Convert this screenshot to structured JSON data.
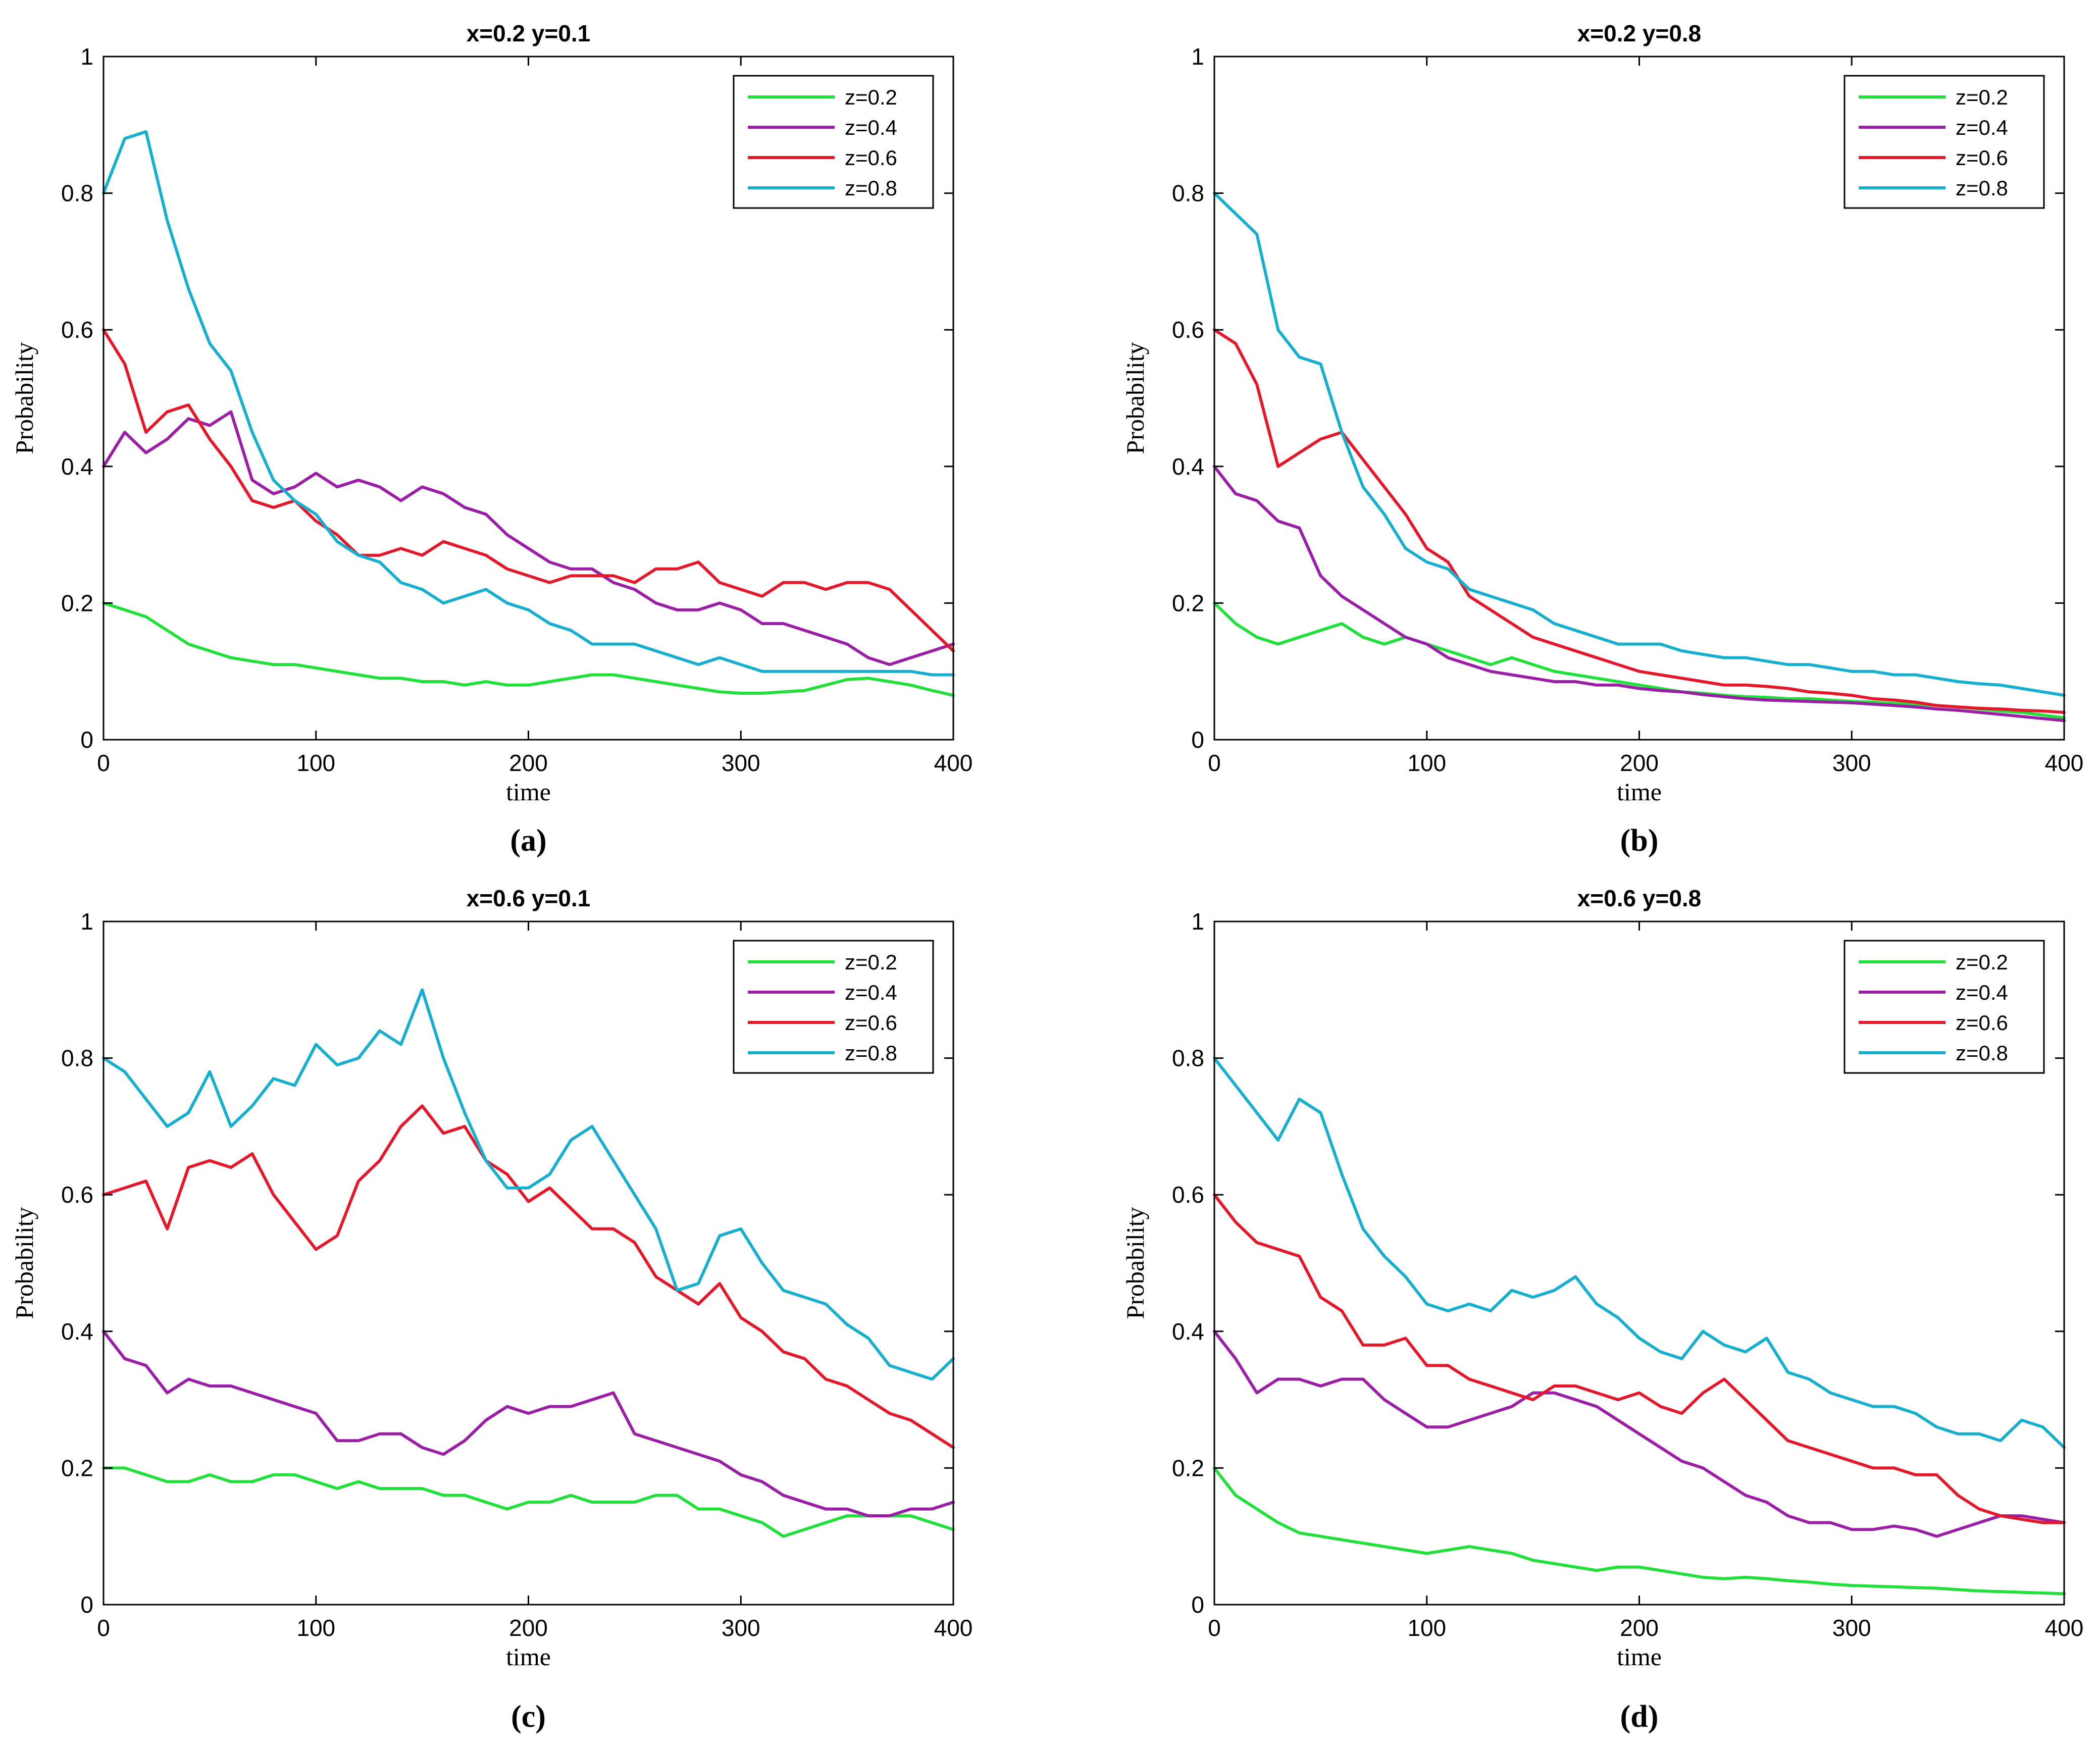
{
  "figure": {
    "colors": {
      "z=0.2": "#22e03a",
      "z=0.4": "#9b1fa6",
      "z=0.6": "#e3192b",
      "z=0.8": "#18afcf"
    }
  },
  "chart_data": [
    {
      "type": "line",
      "panel_label": "(a)",
      "title": "x=0.2 y=0.1",
      "xlabel": "time",
      "ylabel": "Probability",
      "xlim": [
        0,
        400
      ],
      "ylim": [
        0,
        1
      ],
      "xticks": [
        0,
        100,
        200,
        300,
        400
      ],
      "yticks": [
        0,
        0.2,
        0.4,
        0.6,
        0.8,
        1
      ],
      "ytick_labels": [
        "0",
        "0.2",
        "0.4",
        "0.6",
        "0.8",
        "1"
      ],
      "legend": "top-right",
      "x": [
        0,
        10,
        20,
        30,
        40,
        50,
        60,
        70,
        80,
        90,
        100,
        110,
        120,
        130,
        140,
        150,
        160,
        170,
        180,
        190,
        200,
        210,
        220,
        230,
        240,
        250,
        260,
        270,
        280,
        290,
        300,
        310,
        320,
        330,
        340,
        350,
        360,
        370,
        380,
        390,
        400
      ],
      "series": [
        {
          "name": "z=0.2",
          "values": [
            0.2,
            0.19,
            0.18,
            0.16,
            0.14,
            0.13,
            0.12,
            0.115,
            0.11,
            0.11,
            0.105,
            0.1,
            0.095,
            0.09,
            0.09,
            0.085,
            0.085,
            0.08,
            0.085,
            0.08,
            0.08,
            0.085,
            0.09,
            0.095,
            0.095,
            0.09,
            0.085,
            0.08,
            0.075,
            0.07,
            0.068,
            0.068,
            0.07,
            0.072,
            0.08,
            0.088,
            0.09,
            0.085,
            0.08,
            0.072,
            0.065
          ]
        },
        {
          "name": "z=0.4",
          "values": [
            0.4,
            0.45,
            0.42,
            0.44,
            0.47,
            0.46,
            0.48,
            0.38,
            0.36,
            0.37,
            0.39,
            0.37,
            0.38,
            0.37,
            0.35,
            0.37,
            0.36,
            0.34,
            0.33,
            0.3,
            0.28,
            0.26,
            0.25,
            0.25,
            0.23,
            0.22,
            0.2,
            0.19,
            0.19,
            0.2,
            0.19,
            0.17,
            0.17,
            0.16,
            0.15,
            0.14,
            0.12,
            0.11,
            0.12,
            0.13,
            0.14
          ]
        },
        {
          "name": "z=0.6",
          "values": [
            0.6,
            0.55,
            0.45,
            0.48,
            0.49,
            0.44,
            0.4,
            0.35,
            0.34,
            0.35,
            0.32,
            0.3,
            0.27,
            0.27,
            0.28,
            0.27,
            0.29,
            0.28,
            0.27,
            0.25,
            0.24,
            0.23,
            0.24,
            0.24,
            0.24,
            0.23,
            0.25,
            0.25,
            0.26,
            0.23,
            0.22,
            0.21,
            0.23,
            0.23,
            0.22,
            0.23,
            0.23,
            0.22,
            0.19,
            0.16,
            0.13
          ]
        },
        {
          "name": "z=0.8",
          "values": [
            0.8,
            0.88,
            0.89,
            0.76,
            0.66,
            0.58,
            0.54,
            0.45,
            0.38,
            0.35,
            0.33,
            0.29,
            0.27,
            0.26,
            0.23,
            0.22,
            0.2,
            0.21,
            0.22,
            0.2,
            0.19,
            0.17,
            0.16,
            0.14,
            0.14,
            0.14,
            0.13,
            0.12,
            0.11,
            0.12,
            0.11,
            0.1,
            0.1,
            0.1,
            0.1,
            0.1,
            0.1,
            0.1,
            0.1,
            0.095,
            0.095
          ]
        }
      ]
    },
    {
      "type": "line",
      "panel_label": "(b)",
      "title": "x=0.2 y=0.8",
      "xlabel": "time",
      "ylabel": "Probability",
      "xlim": [
        0,
        400
      ],
      "ylim": [
        0,
        1
      ],
      "xticks": [
        0,
        100,
        200,
        300,
        400
      ],
      "yticks": [
        0,
        0.2,
        0.4,
        0.6,
        0.8,
        1
      ],
      "ytick_labels": [
        "0",
        "0.2",
        "0.4",
        "0.6",
        "0.8",
        "1"
      ],
      "legend": "top-right",
      "x": [
        0,
        10,
        20,
        30,
        40,
        50,
        60,
        70,
        80,
        90,
        100,
        110,
        120,
        130,
        140,
        150,
        160,
        170,
        180,
        190,
        200,
        210,
        220,
        230,
        240,
        250,
        260,
        270,
        280,
        290,
        300,
        310,
        320,
        330,
        340,
        350,
        360,
        370,
        380,
        390,
        400
      ],
      "series": [
        {
          "name": "z=0.2",
          "values": [
            0.2,
            0.17,
            0.15,
            0.14,
            0.15,
            0.16,
            0.17,
            0.15,
            0.14,
            0.15,
            0.14,
            0.13,
            0.12,
            0.11,
            0.12,
            0.11,
            0.1,
            0.095,
            0.09,
            0.085,
            0.08,
            0.075,
            0.07,
            0.068,
            0.065,
            0.063,
            0.062,
            0.06,
            0.06,
            0.058,
            0.056,
            0.055,
            0.053,
            0.052,
            0.05,
            0.048,
            0.045,
            0.042,
            0.04,
            0.036,
            0.032
          ]
        },
        {
          "name": "z=0.4",
          "values": [
            0.4,
            0.36,
            0.35,
            0.32,
            0.31,
            0.24,
            0.21,
            0.19,
            0.17,
            0.15,
            0.14,
            0.12,
            0.11,
            0.1,
            0.095,
            0.09,
            0.085,
            0.085,
            0.08,
            0.08,
            0.075,
            0.072,
            0.07,
            0.066,
            0.063,
            0.06,
            0.058,
            0.057,
            0.056,
            0.055,
            0.054,
            0.052,
            0.05,
            0.048,
            0.045,
            0.043,
            0.04,
            0.037,
            0.034,
            0.031,
            0.028
          ]
        },
        {
          "name": "z=0.6",
          "values": [
            0.6,
            0.58,
            0.52,
            0.4,
            0.42,
            0.44,
            0.45,
            0.41,
            0.37,
            0.33,
            0.28,
            0.26,
            0.21,
            0.19,
            0.17,
            0.15,
            0.14,
            0.13,
            0.12,
            0.11,
            0.1,
            0.095,
            0.09,
            0.085,
            0.08,
            0.08,
            0.078,
            0.075,
            0.07,
            0.068,
            0.065,
            0.06,
            0.058,
            0.055,
            0.05,
            0.048,
            0.046,
            0.045,
            0.043,
            0.042,
            0.04
          ]
        },
        {
          "name": "z=0.8",
          "values": [
            0.8,
            0.77,
            0.74,
            0.6,
            0.56,
            0.55,
            0.45,
            0.37,
            0.33,
            0.28,
            0.26,
            0.25,
            0.22,
            0.21,
            0.2,
            0.19,
            0.17,
            0.16,
            0.15,
            0.14,
            0.14,
            0.14,
            0.13,
            0.125,
            0.12,
            0.12,
            0.115,
            0.11,
            0.11,
            0.105,
            0.1,
            0.1,
            0.095,
            0.095,
            0.09,
            0.085,
            0.082,
            0.08,
            0.075,
            0.07,
            0.065
          ]
        }
      ]
    },
    {
      "type": "line",
      "panel_label": "(c)",
      "title": "x=0.6 y=0.1",
      "xlabel": "time",
      "ylabel": "Probability",
      "xlim": [
        0,
        400
      ],
      "ylim": [
        0,
        1
      ],
      "xticks": [
        0,
        100,
        200,
        300,
        400
      ],
      "yticks": [
        0,
        0.2,
        0.4,
        0.6,
        0.8,
        1
      ],
      "ytick_labels": [
        "0",
        "0.2",
        "0.4",
        "0.6",
        "0.8",
        "1"
      ],
      "legend": "top-right",
      "x": [
        0,
        10,
        20,
        30,
        40,
        50,
        60,
        70,
        80,
        90,
        100,
        110,
        120,
        130,
        140,
        150,
        160,
        170,
        180,
        190,
        200,
        210,
        220,
        230,
        240,
        250,
        260,
        270,
        280,
        290,
        300,
        310,
        320,
        330,
        340,
        350,
        360,
        370,
        380,
        390,
        400
      ],
      "series": [
        {
          "name": "z=0.2",
          "values": [
            0.2,
            0.2,
            0.19,
            0.18,
            0.18,
            0.19,
            0.18,
            0.18,
            0.19,
            0.19,
            0.18,
            0.17,
            0.18,
            0.17,
            0.17,
            0.17,
            0.16,
            0.16,
            0.15,
            0.14,
            0.15,
            0.15,
            0.16,
            0.15,
            0.15,
            0.15,
            0.16,
            0.16,
            0.14,
            0.14,
            0.13,
            0.12,
            0.1,
            0.11,
            0.12,
            0.13,
            0.13,
            0.13,
            0.13,
            0.12,
            0.11
          ]
        },
        {
          "name": "z=0.4",
          "values": [
            0.4,
            0.36,
            0.35,
            0.31,
            0.33,
            0.32,
            0.32,
            0.31,
            0.3,
            0.29,
            0.28,
            0.24,
            0.24,
            0.25,
            0.25,
            0.23,
            0.22,
            0.24,
            0.27,
            0.29,
            0.28,
            0.29,
            0.29,
            0.3,
            0.31,
            0.25,
            0.24,
            0.23,
            0.22,
            0.21,
            0.19,
            0.18,
            0.16,
            0.15,
            0.14,
            0.14,
            0.13,
            0.13,
            0.14,
            0.14,
            0.15
          ]
        },
        {
          "name": "z=0.6",
          "values": [
            0.6,
            0.61,
            0.62,
            0.55,
            0.64,
            0.65,
            0.64,
            0.66,
            0.6,
            0.56,
            0.52,
            0.54,
            0.62,
            0.65,
            0.7,
            0.73,
            0.69,
            0.7,
            0.65,
            0.63,
            0.59,
            0.61,
            0.58,
            0.55,
            0.55,
            0.53,
            0.48,
            0.46,
            0.44,
            0.47,
            0.42,
            0.4,
            0.37,
            0.36,
            0.33,
            0.32,
            0.3,
            0.28,
            0.27,
            0.25,
            0.23
          ]
        },
        {
          "name": "z=0.8",
          "values": [
            0.8,
            0.78,
            0.74,
            0.7,
            0.72,
            0.78,
            0.7,
            0.73,
            0.77,
            0.76,
            0.82,
            0.79,
            0.8,
            0.84,
            0.82,
            0.9,
            0.8,
            0.72,
            0.65,
            0.61,
            0.61,
            0.63,
            0.68,
            0.7,
            0.65,
            0.6,
            0.55,
            0.46,
            0.47,
            0.54,
            0.55,
            0.5,
            0.46,
            0.45,
            0.44,
            0.41,
            0.39,
            0.35,
            0.34,
            0.33,
            0.36
          ]
        }
      ]
    },
    {
      "type": "line",
      "panel_label": "(d)",
      "title": "x=0.6 y=0.8",
      "xlabel": "time",
      "ylabel": "Probability",
      "xlim": [
        0,
        400
      ],
      "ylim": [
        0,
        1
      ],
      "xticks": [
        0,
        100,
        200,
        300,
        400
      ],
      "yticks": [
        0,
        0.2,
        0.4,
        0.6,
        0.8,
        1
      ],
      "ytick_labels": [
        "0",
        "0.2",
        "0.4",
        "0.6",
        "0.8",
        "1"
      ],
      "legend": "top-right",
      "x": [
        0,
        10,
        20,
        30,
        40,
        50,
        60,
        70,
        80,
        90,
        100,
        110,
        120,
        130,
        140,
        150,
        160,
        170,
        180,
        190,
        200,
        210,
        220,
        230,
        240,
        250,
        260,
        270,
        280,
        290,
        300,
        310,
        320,
        330,
        340,
        350,
        360,
        370,
        380,
        390,
        400
      ],
      "series": [
        {
          "name": "z=0.2",
          "values": [
            0.2,
            0.16,
            0.14,
            0.12,
            0.105,
            0.1,
            0.095,
            0.09,
            0.085,
            0.08,
            0.075,
            0.08,
            0.085,
            0.08,
            0.075,
            0.065,
            0.06,
            0.055,
            0.05,
            0.055,
            0.055,
            0.05,
            0.045,
            0.04,
            0.038,
            0.04,
            0.038,
            0.035,
            0.033,
            0.03,
            0.028,
            0.027,
            0.026,
            0.025,
            0.024,
            0.022,
            0.02,
            0.019,
            0.018,
            0.017,
            0.016
          ]
        },
        {
          "name": "z=0.4",
          "values": [
            0.4,
            0.36,
            0.31,
            0.33,
            0.33,
            0.32,
            0.33,
            0.33,
            0.3,
            0.28,
            0.26,
            0.26,
            0.27,
            0.28,
            0.29,
            0.31,
            0.31,
            0.3,
            0.29,
            0.27,
            0.25,
            0.23,
            0.21,
            0.2,
            0.18,
            0.16,
            0.15,
            0.13,
            0.12,
            0.12,
            0.11,
            0.11,
            0.115,
            0.11,
            0.1,
            0.11,
            0.12,
            0.13,
            0.13,
            0.125,
            0.12
          ]
        },
        {
          "name": "z=0.6",
          "values": [
            0.6,
            0.56,
            0.53,
            0.52,
            0.51,
            0.45,
            0.43,
            0.38,
            0.38,
            0.39,
            0.35,
            0.35,
            0.33,
            0.32,
            0.31,
            0.3,
            0.32,
            0.32,
            0.31,
            0.3,
            0.31,
            0.29,
            0.28,
            0.31,
            0.33,
            0.3,
            0.27,
            0.24,
            0.23,
            0.22,
            0.21,
            0.2,
            0.2,
            0.19,
            0.19,
            0.16,
            0.14,
            0.13,
            0.125,
            0.12,
            0.12
          ]
        },
        {
          "name": "z=0.8",
          "values": [
            0.8,
            0.76,
            0.72,
            0.68,
            0.74,
            0.72,
            0.63,
            0.55,
            0.51,
            0.48,
            0.44,
            0.43,
            0.44,
            0.43,
            0.46,
            0.45,
            0.46,
            0.48,
            0.44,
            0.42,
            0.39,
            0.37,
            0.36,
            0.4,
            0.38,
            0.37,
            0.39,
            0.34,
            0.33,
            0.31,
            0.3,
            0.29,
            0.29,
            0.28,
            0.26,
            0.25,
            0.25,
            0.24,
            0.27,
            0.26,
            0.23
          ]
        }
      ]
    }
  ]
}
